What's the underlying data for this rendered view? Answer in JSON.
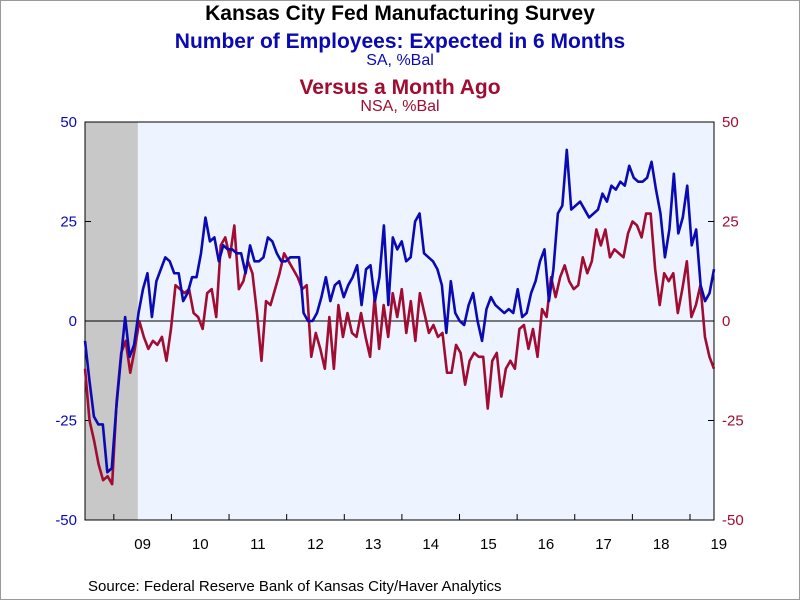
{
  "chart_data": {
    "type": "line",
    "title": "Kansas City Fed Manufacturing Survey",
    "series": [
      {
        "name": "Number of Employees: Expected in 6 Months",
        "subtitle": "SA, %Bal",
        "axis": "left",
        "color": "#0a0ab4",
        "values": [
          -5,
          -15,
          -24,
          -26,
          -26,
          -38,
          -37,
          -22,
          -10,
          1,
          -9,
          -6,
          2,
          8,
          12,
          1,
          10,
          13,
          16,
          15,
          12,
          12,
          5,
          7,
          11,
          11,
          17,
          26,
          20,
          21,
          15,
          19,
          18,
          18,
          17,
          17,
          12,
          19,
          15,
          15,
          16,
          21,
          20,
          17,
          15,
          15,
          16,
          16,
          16,
          2,
          0,
          0,
          2,
          6,
          11,
          5,
          9,
          10,
          6,
          9,
          11,
          14,
          4,
          13,
          14,
          5,
          11,
          24,
          4,
          21,
          18,
          20,
          15,
          16,
          25,
          27,
          17,
          16,
          15,
          13,
          9,
          -3,
          10,
          2,
          0,
          -1,
          4,
          7,
          0,
          -5,
          3,
          6,
          4,
          3,
          2,
          3,
          2,
          8,
          1,
          2,
          7,
          10,
          15,
          18,
          5,
          13,
          27,
          29,
          43,
          28,
          29,
          30,
          28,
          26,
          27,
          28,
          32,
          30,
          34,
          33,
          35,
          34,
          39,
          36,
          35,
          35,
          36,
          40,
          33,
          27,
          16,
          23,
          37,
          22,
          26,
          34,
          19,
          23,
          9,
          5,
          7,
          13
        ]
      },
      {
        "name": "Versus a Month Ago",
        "subtitle": "NSA, %Bal",
        "axis": "right",
        "color": "#a00c32",
        "values": [
          -12,
          -25,
          -30,
          -36,
          -40,
          -39,
          -41,
          -20,
          -8,
          -5,
          -13,
          -7,
          0,
          -4,
          -7,
          -5,
          -6,
          -4,
          -10,
          -2,
          9,
          8,
          7,
          8,
          2,
          1,
          -2,
          7,
          8,
          1,
          19,
          21,
          16,
          24,
          8,
          10,
          15,
          12,
          2,
          -10,
          5,
          4,
          8,
          12,
          17,
          15,
          13,
          11,
          8,
          9,
          -9,
          -3,
          -7,
          -12,
          1,
          -12,
          4,
          -4,
          2,
          -3,
          -4,
          2,
          -4,
          -9,
          6,
          -7,
          4,
          -4,
          7,
          1,
          8,
          -3,
          5,
          -5,
          7,
          2,
          -3,
          -1,
          -4,
          -3,
          -13,
          -13,
          -6,
          -8,
          -16,
          -10,
          -8,
          -9,
          -9,
          -22,
          -10,
          -8,
          -19,
          -12,
          -10,
          -12,
          -2,
          -1,
          -7,
          -2,
          -9,
          3,
          1,
          11,
          6,
          11,
          14,
          10,
          8,
          9,
          16,
          12,
          15,
          23,
          19,
          23,
          16,
          18,
          17,
          16,
          22,
          25,
          24,
          21,
          27,
          27,
          13,
          4,
          12,
          10,
          12,
          2,
          8,
          15,
          1,
          4,
          9,
          -4,
          -9,
          -12
        ]
      }
    ],
    "x_start": "2008-07",
    "x_end": "2019-06",
    "x_tick_labels": [
      "09",
      "10",
      "11",
      "12",
      "13",
      "14",
      "15",
      "16",
      "17",
      "18",
      "19"
    ],
    "x_tick_years": [
      2009,
      2010,
      2011,
      2012,
      2013,
      2014,
      2015,
      2016,
      2017,
      2018,
      2019
    ],
    "left_axis": {
      "ylim": [
        -50,
        50
      ],
      "ticks": [
        -50,
        -25,
        0,
        25,
        50
      ],
      "tick_labels": [
        "-50",
        "-25",
        "0",
        "25",
        "50"
      ],
      "color": "#0a0ab4"
    },
    "right_axis": {
      "ylim": [
        -50,
        50
      ],
      "ticks": [
        -50,
        -25,
        0,
        25,
        50
      ],
      "tick_labels": [
        "-50",
        "-25",
        "0",
        "25",
        "50"
      ],
      "color": "#a00c32"
    },
    "recession_shading": {
      "start": "2008-07",
      "end": "2009-06",
      "color": "#c8c8c8"
    },
    "plot_background": "#eef4ff",
    "grid": false
  },
  "titles": {
    "main": "Kansas City Fed Manufacturing Survey",
    "series1": "Number of Employees: Expected in 6 Months",
    "series1_sub": "SA, %Bal",
    "series2": "Versus a Month Ago",
    "series2_sub": "NSA, %Bal"
  },
  "source": "Source:  Federal Reserve Bank of Kansas City/Haver Analytics"
}
